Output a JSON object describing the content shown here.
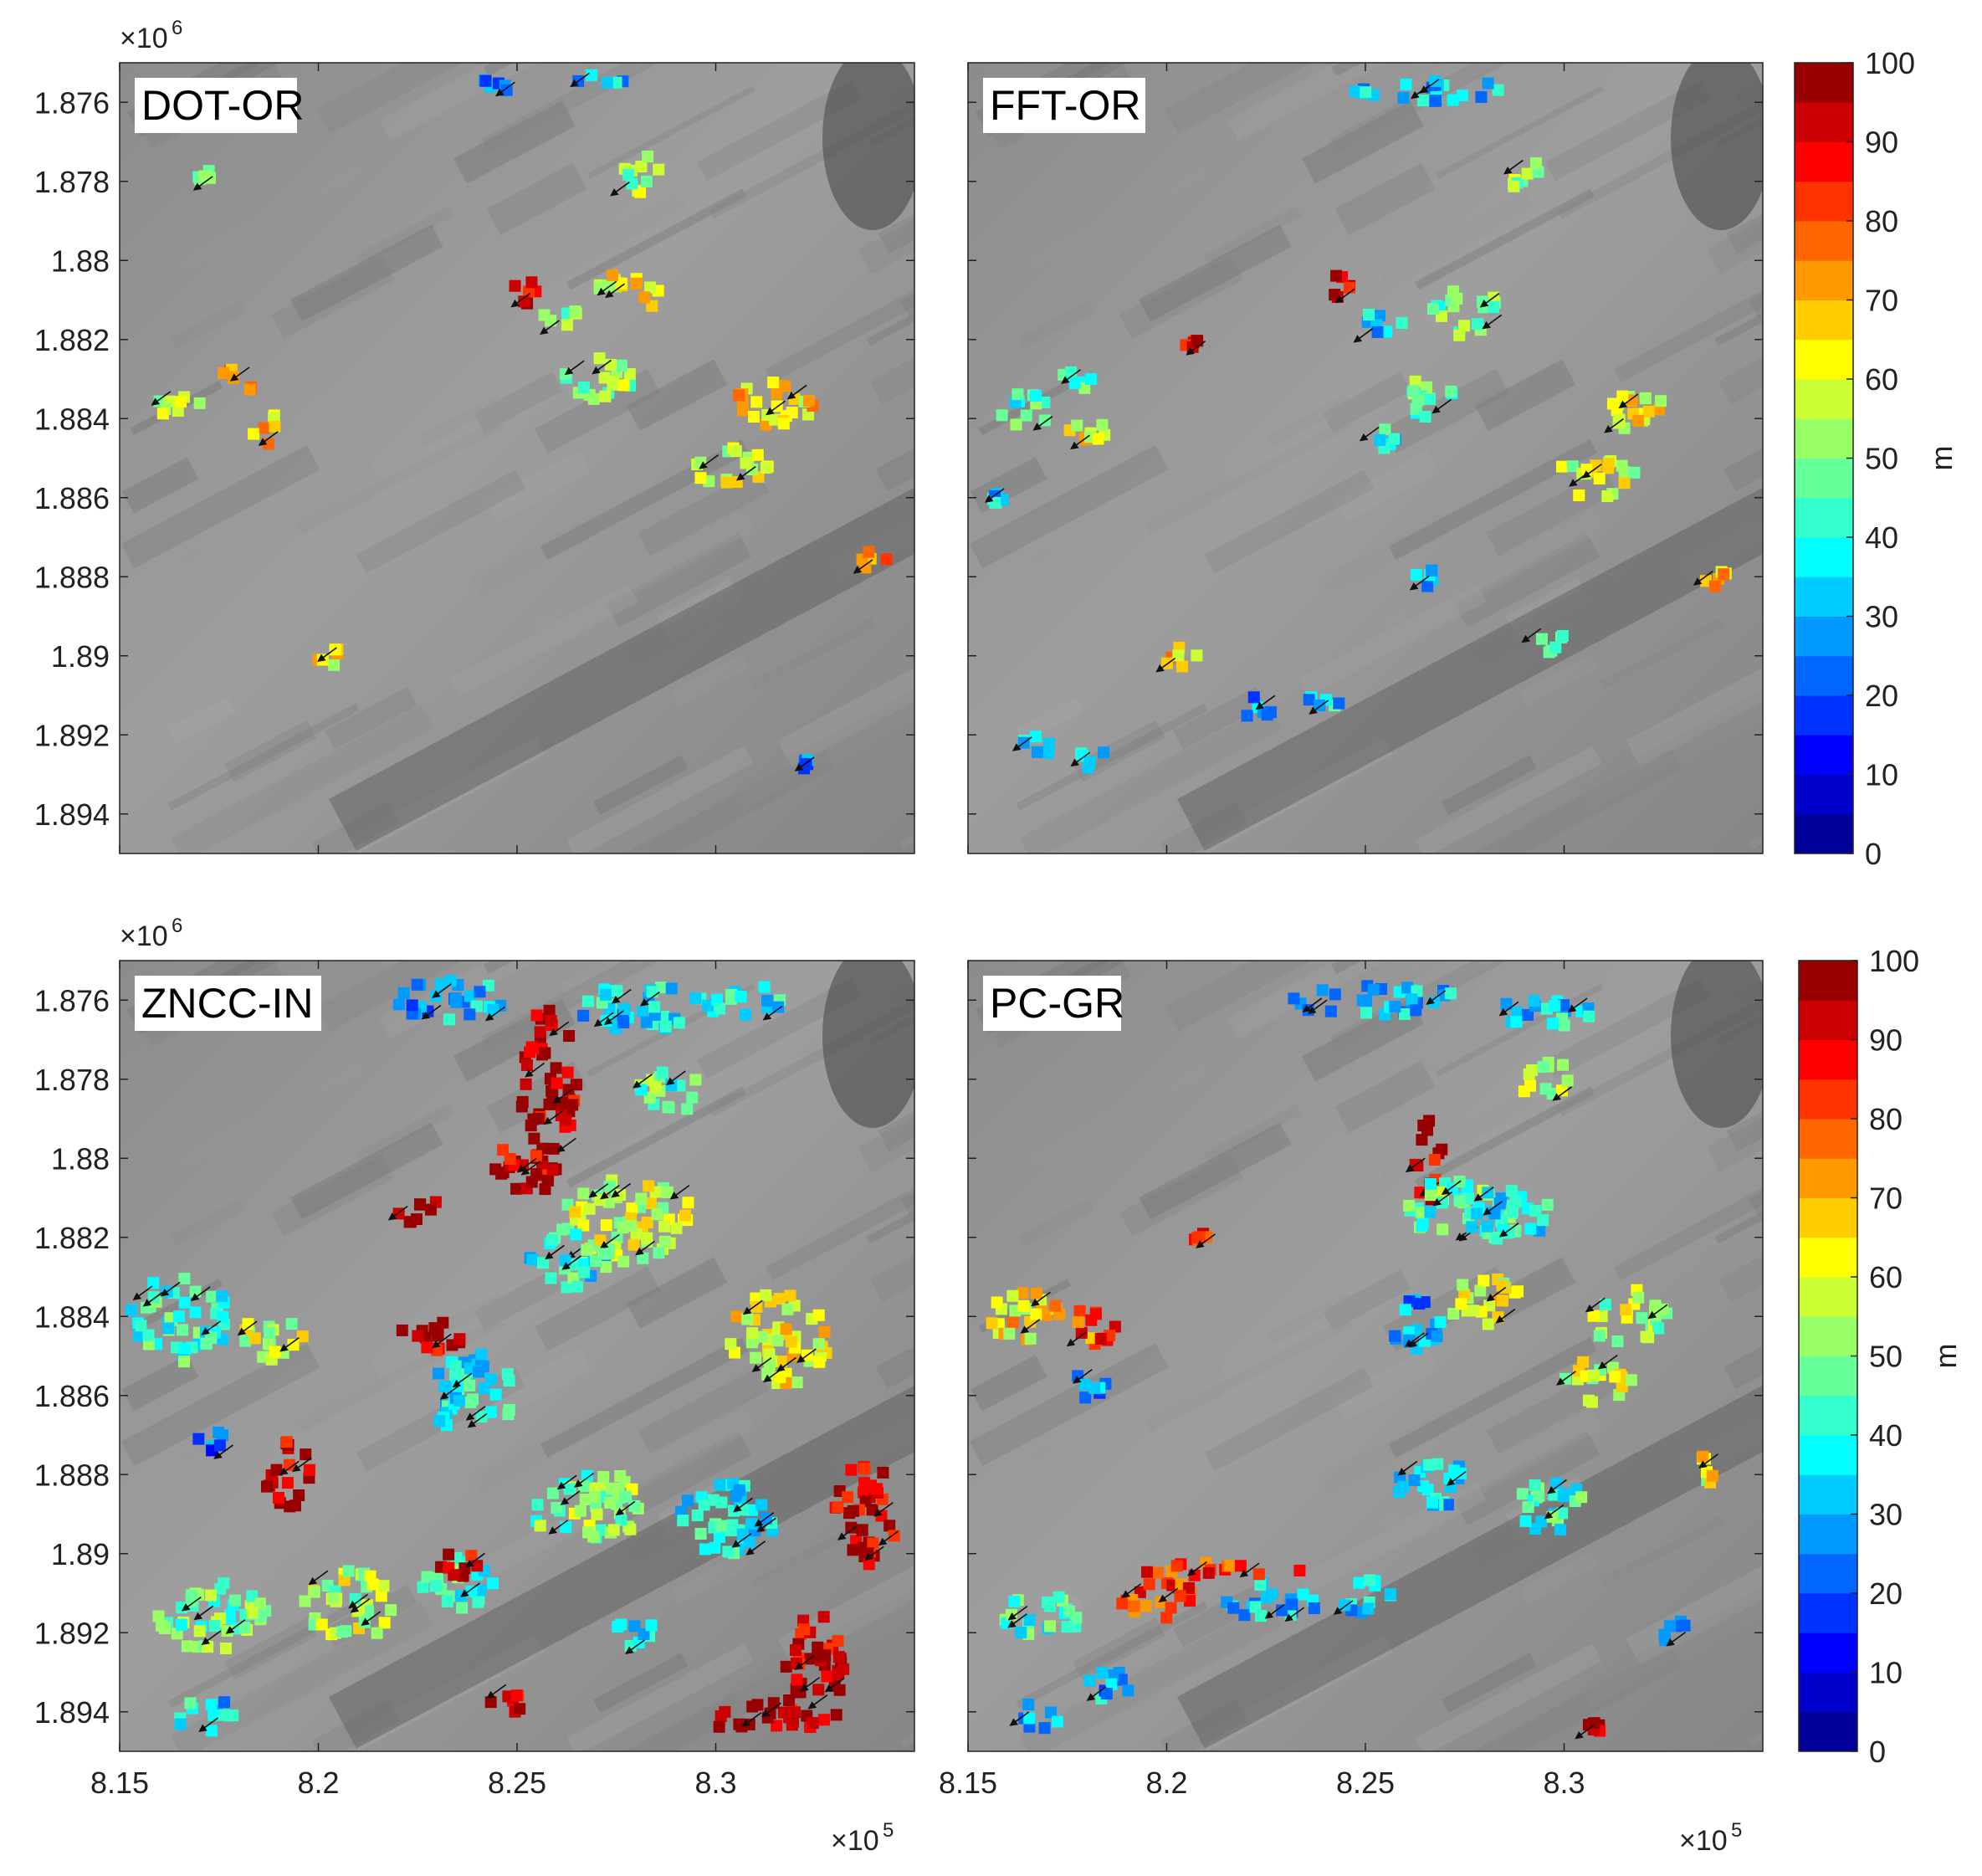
{
  "chart_data": {
    "type": "heatmap",
    "description_axes": "shared",
    "x_axis": {
      "ticks": [
        815000,
        820000,
        825000,
        830000
      ],
      "tick_labels": [
        "8.15",
        "8.2",
        "8.25",
        "8.3"
      ],
      "exponent_label": "×10",
      "exponent": "5",
      "xlim": [
        815000,
        835000
      ]
    },
    "y_axis": {
      "ticks": [
        1876000,
        1878000,
        1880000,
        1882000,
        1884000,
        1886000,
        1888000,
        1890000,
        1892000,
        1894000
      ],
      "tick_labels": [
        "1.876",
        "1.878",
        "1.88",
        "1.882",
        "1.884",
        "1.886",
        "1.888",
        "1.89",
        "1.892",
        "1.894"
      ],
      "exponent_label": "×10",
      "exponent": "6",
      "ylim": [
        1875000,
        1895000
      ],
      "reversed": true
    },
    "colorbar": {
      "ticks": [
        0,
        10,
        20,
        30,
        40,
        50,
        60,
        70,
        80,
        90,
        100
      ],
      "tick_labels": [
        "0",
        "10",
        "20",
        "30",
        "40",
        "50",
        "60",
        "70",
        "80",
        "90",
        "100"
      ],
      "label": "m",
      "range": [
        0,
        100
      ],
      "colormap": "jet",
      "levels": 20
    },
    "panels": [
      {
        "title": "DOT-OR",
        "clusters": [
          {
            "x": 816.5,
            "y": 1883.6,
            "w": 1.2,
            "h": 0.8,
            "v": 55
          },
          {
            "x": 818.0,
            "y": 1883.0,
            "w": 1.1,
            "h": 0.7,
            "v": 70
          },
          {
            "x": 818.8,
            "y": 1884.3,
            "w": 0.9,
            "h": 0.8,
            "v": 68
          },
          {
            "x": 817.2,
            "y": 1877.9,
            "w": 0.5,
            "h": 0.4,
            "v": 45
          },
          {
            "x": 827.8,
            "y": 1880.8,
            "w": 1.6,
            "h": 1.1,
            "v": 62
          },
          {
            "x": 827.0,
            "y": 1883.0,
            "w": 1.8,
            "h": 1.2,
            "v": 52
          },
          {
            "x": 826.0,
            "y": 1881.4,
            "w": 1.0,
            "h": 0.7,
            "v": 50
          },
          {
            "x": 831.5,
            "y": 1883.6,
            "w": 2.2,
            "h": 1.2,
            "v": 65
          },
          {
            "x": 830.4,
            "y": 1885.2,
            "w": 2.0,
            "h": 1.0,
            "v": 58
          },
          {
            "x": 828.0,
            "y": 1877.8,
            "w": 1.2,
            "h": 1.0,
            "v": 52
          },
          {
            "x": 824.4,
            "y": 1875.6,
            "w": 1.0,
            "h": 0.4,
            "v": 28
          },
          {
            "x": 827.0,
            "y": 1875.5,
            "w": 1.4,
            "h": 0.4,
            "v": 35
          },
          {
            "x": 820.3,
            "y": 1890.0,
            "w": 0.7,
            "h": 0.5,
            "v": 62
          },
          {
            "x": 834.0,
            "y": 1887.6,
            "w": 0.7,
            "h": 1.0,
            "v": 72
          },
          {
            "x": 825.2,
            "y": 1880.8,
            "w": 0.6,
            "h": 0.6,
            "v": 95
          },
          {
            "x": 832.2,
            "y": 1892.7,
            "w": 0.4,
            "h": 0.3,
            "v": 22
          }
        ]
      },
      {
        "title": "FFT-OR",
        "clusters": [
          {
            "x": 816.5,
            "y": 1883.8,
            "w": 1.4,
            "h": 0.9,
            "v": 42
          },
          {
            "x": 818.0,
            "y": 1884.4,
            "w": 1.4,
            "h": 0.8,
            "v": 62
          },
          {
            "x": 817.8,
            "y": 1883.0,
            "w": 1.0,
            "h": 0.6,
            "v": 48
          },
          {
            "x": 827.5,
            "y": 1881.3,
            "w": 1.8,
            "h": 1.3,
            "v": 48
          },
          {
            "x": 825.4,
            "y": 1881.6,
            "w": 1.1,
            "h": 0.7,
            "v": 32
          },
          {
            "x": 826.5,
            "y": 1883.5,
            "w": 1.6,
            "h": 1.0,
            "v": 48
          },
          {
            "x": 831.6,
            "y": 1883.8,
            "w": 1.9,
            "h": 1.2,
            "v": 62
          },
          {
            "x": 830.8,
            "y": 1885.5,
            "w": 2.0,
            "h": 1.1,
            "v": 58
          },
          {
            "x": 826.5,
            "y": 1875.7,
            "w": 4.0,
            "h": 0.6,
            "v": 32
          },
          {
            "x": 828.9,
            "y": 1877.8,
            "w": 1.0,
            "h": 0.9,
            "v": 52
          },
          {
            "x": 824.3,
            "y": 1880.7,
            "w": 0.8,
            "h": 0.8,
            "v": 95
          },
          {
            "x": 820.3,
            "y": 1890.0,
            "w": 1.1,
            "h": 0.6,
            "v": 66
          },
          {
            "x": 829.6,
            "y": 1889.7,
            "w": 1.0,
            "h": 0.7,
            "v": 40
          },
          {
            "x": 826.3,
            "y": 1888.0,
            "w": 1.0,
            "h": 0.6,
            "v": 32
          },
          {
            "x": 833.8,
            "y": 1887.9,
            "w": 0.8,
            "h": 0.7,
            "v": 68
          },
          {
            "x": 816.7,
            "y": 1892.3,
            "w": 0.8,
            "h": 0.6,
            "v": 30
          },
          {
            "x": 818.2,
            "y": 1892.6,
            "w": 1.0,
            "h": 0.6,
            "v": 40
          },
          {
            "x": 822.3,
            "y": 1891.3,
            "w": 0.8,
            "h": 0.7,
            "v": 28
          },
          {
            "x": 824.0,
            "y": 1891.2,
            "w": 1.0,
            "h": 0.5,
            "v": 34
          },
          {
            "x": 825.5,
            "y": 1884.5,
            "w": 1.0,
            "h": 0.5,
            "v": 38
          },
          {
            "x": 815.8,
            "y": 1886.0,
            "w": 0.4,
            "h": 0.4,
            "v": 30
          },
          {
            "x": 820.7,
            "y": 1882.1,
            "w": 0.5,
            "h": 0.3,
            "v": 88
          }
        ]
      },
      {
        "title": "ZNCC-IN",
        "clusters": [
          {
            "x": 825.8,
            "y": 1878.3,
            "w": 1.4,
            "h": 4.5,
            "v": 96
          },
          {
            "x": 825.2,
            "y": 1880.2,
            "w": 1.6,
            "h": 1.5,
            "v": 95
          },
          {
            "x": 827.8,
            "y": 1881.6,
            "w": 3.4,
            "h": 2.2,
            "v": 55
          },
          {
            "x": 826.3,
            "y": 1882.6,
            "w": 2.0,
            "h": 1.4,
            "v": 40
          },
          {
            "x": 831.6,
            "y": 1884.6,
            "w": 2.6,
            "h": 2.4,
            "v": 62
          },
          {
            "x": 816.5,
            "y": 1884.1,
            "w": 2.6,
            "h": 2.2,
            "v": 42
          },
          {
            "x": 818.8,
            "y": 1884.6,
            "w": 1.8,
            "h": 1.1,
            "v": 58
          },
          {
            "x": 823.8,
            "y": 1885.9,
            "w": 2.4,
            "h": 2.0,
            "v": 38
          },
          {
            "x": 819.2,
            "y": 1888.0,
            "w": 1.2,
            "h": 1.8,
            "v": 96
          },
          {
            "x": 822.5,
            "y": 1881.3,
            "w": 1.4,
            "h": 0.7,
            "v": 95
          },
          {
            "x": 822.8,
            "y": 1884.6,
            "w": 1.6,
            "h": 1.0,
            "v": 95
          },
          {
            "x": 826.8,
            "y": 1888.8,
            "w": 3.0,
            "h": 1.8,
            "v": 50
          },
          {
            "x": 830.3,
            "y": 1889.2,
            "w": 2.6,
            "h": 2.0,
            "v": 36
          },
          {
            "x": 833.8,
            "y": 1889.0,
            "w": 1.6,
            "h": 2.6,
            "v": 92
          },
          {
            "x": 817.3,
            "y": 1891.6,
            "w": 2.8,
            "h": 1.8,
            "v": 48
          },
          {
            "x": 820.8,
            "y": 1891.3,
            "w": 2.4,
            "h": 1.8,
            "v": 55
          },
          {
            "x": 823.5,
            "y": 1890.8,
            "w": 1.8,
            "h": 1.4,
            "v": 40
          },
          {
            "x": 832.5,
            "y": 1893.0,
            "w": 1.6,
            "h": 3.0,
            "v": 95
          },
          {
            "x": 831.2,
            "y": 1894.2,
            "w": 2.6,
            "h": 0.9,
            "v": 95
          },
          {
            "x": 817.2,
            "y": 1894.1,
            "w": 1.8,
            "h": 0.8,
            "v": 35
          },
          {
            "x": 824.8,
            "y": 1893.8,
            "w": 1.0,
            "h": 0.9,
            "v": 90
          },
          {
            "x": 823.6,
            "y": 1890.2,
            "w": 1.2,
            "h": 0.8,
            "v": 95
          },
          {
            "x": 828.3,
            "y": 1876.2,
            "w": 3.6,
            "h": 1.2,
            "v": 35
          },
          {
            "x": 823.3,
            "y": 1876.0,
            "w": 3.0,
            "h": 1.0,
            "v": 30
          },
          {
            "x": 828.9,
            "y": 1878.3,
            "w": 1.8,
            "h": 1.0,
            "v": 45
          },
          {
            "x": 830.8,
            "y": 1876.0,
            "w": 1.8,
            "h": 0.8,
            "v": 40
          },
          {
            "x": 817.3,
            "y": 1887.2,
            "w": 0.9,
            "h": 0.8,
            "v": 25
          },
          {
            "x": 828.0,
            "y": 1892.0,
            "w": 1.0,
            "h": 0.9,
            "v": 34
          }
        ]
      },
      {
        "title": "PC-GR",
        "clusters": [
          {
            "x": 826.6,
            "y": 1880.0,
            "w": 0.8,
            "h": 2.2,
            "v": 95
          },
          {
            "x": 827.3,
            "y": 1881.3,
            "w": 2.8,
            "h": 1.5,
            "v": 45
          },
          {
            "x": 828.6,
            "y": 1881.4,
            "w": 2.2,
            "h": 1.4,
            "v": 38
          },
          {
            "x": 826.3,
            "y": 1884.2,
            "w": 1.4,
            "h": 1.5,
            "v": 28
          },
          {
            "x": 828.0,
            "y": 1883.6,
            "w": 2.0,
            "h": 1.2,
            "v": 60
          },
          {
            "x": 831.6,
            "y": 1884.0,
            "w": 2.0,
            "h": 1.4,
            "v": 55
          },
          {
            "x": 830.8,
            "y": 1885.6,
            "w": 1.8,
            "h": 1.2,
            "v": 58
          },
          {
            "x": 816.5,
            "y": 1884.0,
            "w": 2.0,
            "h": 1.4,
            "v": 65
          },
          {
            "x": 818.3,
            "y": 1884.2,
            "w": 1.4,
            "h": 1.0,
            "v": 80
          },
          {
            "x": 826.8,
            "y": 1888.3,
            "w": 2.0,
            "h": 1.3,
            "v": 32
          },
          {
            "x": 829.6,
            "y": 1888.8,
            "w": 1.8,
            "h": 1.4,
            "v": 42
          },
          {
            "x": 816.8,
            "y": 1891.6,
            "w": 2.0,
            "h": 1.2,
            "v": 42
          },
          {
            "x": 819.8,
            "y": 1891.2,
            "w": 2.2,
            "h": 1.0,
            "v": 82
          },
          {
            "x": 822.6,
            "y": 1891.2,
            "w": 2.4,
            "h": 1.0,
            "v": 32
          },
          {
            "x": 825.0,
            "y": 1891.0,
            "w": 1.4,
            "h": 1.0,
            "v": 35
          },
          {
            "x": 821.3,
            "y": 1890.4,
            "w": 4.2,
            "h": 0.4,
            "v": 82
          },
          {
            "x": 825.2,
            "y": 1876.0,
            "w": 4.4,
            "h": 0.8,
            "v": 32
          },
          {
            "x": 829.5,
            "y": 1876.3,
            "w": 2.6,
            "h": 0.8,
            "v": 35
          },
          {
            "x": 829.5,
            "y": 1878.0,
            "w": 1.4,
            "h": 1.0,
            "v": 55
          },
          {
            "x": 818.0,
            "y": 1885.8,
            "w": 1.0,
            "h": 0.8,
            "v": 25
          },
          {
            "x": 818.5,
            "y": 1893.3,
            "w": 1.4,
            "h": 0.8,
            "v": 30
          },
          {
            "x": 816.8,
            "y": 1894.1,
            "w": 1.2,
            "h": 0.7,
            "v": 30
          },
          {
            "x": 830.8,
            "y": 1894.5,
            "w": 0.8,
            "h": 0.5,
            "v": 96
          },
          {
            "x": 833.8,
            "y": 1887.8,
            "w": 0.9,
            "h": 0.9,
            "v": 60
          },
          {
            "x": 832.8,
            "y": 1892.0,
            "w": 1.0,
            "h": 0.7,
            "v": 32
          },
          {
            "x": 820.9,
            "y": 1882.0,
            "w": 0.5,
            "h": 0.3,
            "v": 82
          }
        ]
      }
    ]
  }
}
